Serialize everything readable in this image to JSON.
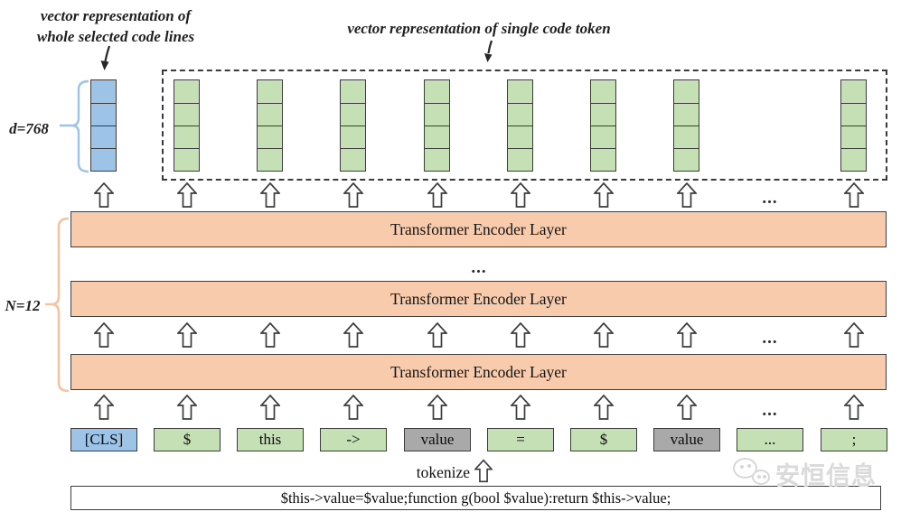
{
  "annotations": {
    "whole_lines_line1": "vector representation of",
    "whole_lines_line2": "whole selected code lines",
    "single_token": "vector representation of single code token",
    "dimension": "d=768",
    "num_layers": "N=12",
    "tokenize": "tokenize"
  },
  "encoder": {
    "layer_label": "Transformer Encoder Layer",
    "shown_layers": 3
  },
  "ellipsis": "...",
  "tokens": [
    {
      "text": "[CLS]",
      "type": "cls"
    },
    {
      "text": "$",
      "type": "code"
    },
    {
      "text": "this",
      "type": "code"
    },
    {
      "text": "->",
      "type": "code"
    },
    {
      "text": "value",
      "type": "identifier"
    },
    {
      "text": "=",
      "type": "code"
    },
    {
      "text": "$",
      "type": "code"
    },
    {
      "text": "value",
      "type": "identifier"
    },
    {
      "text": "...",
      "type": "code"
    },
    {
      "text": ";",
      "type": "code"
    }
  ],
  "vectors": {
    "cells_per_vector": 4
  },
  "code_input": "$this->value=$value;function g(bool $value):return $this->value;",
  "watermark_text": "安恒信息",
  "colors": {
    "cls_blue": "#9dc3e6",
    "token_green": "#c5e0b4",
    "identifier_gray": "#a9a9a9",
    "encoder_orange": "#f8cbad",
    "brace_blue": "#9dc3e6",
    "brace_orange": "#f5c3a0"
  }
}
